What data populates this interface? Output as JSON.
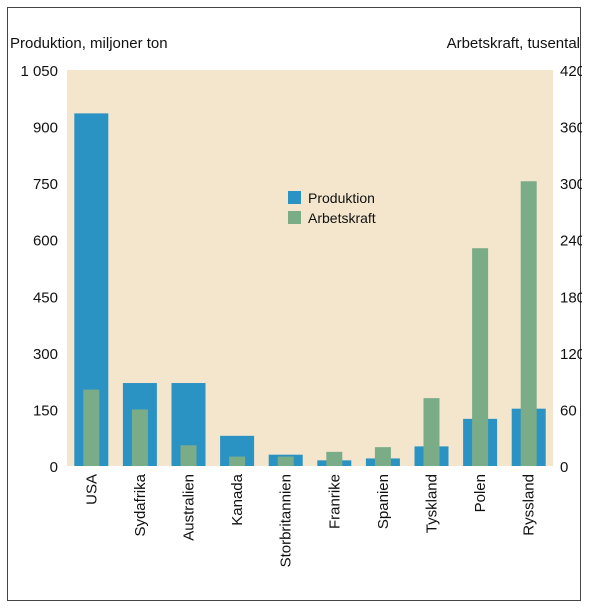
{
  "chart_data": {
    "type": "bar",
    "title": "",
    "ylabel_left": "Produktion, miljoner ton",
    "ylabel_right": "Arbetskraft, tusental",
    "categories": [
      "USA",
      "Sydafrika",
      "Australien",
      "Kanada",
      "Storbritannien",
      "Franrike",
      "Spanien",
      "Tyskland",
      "Polen",
      "Ryssland"
    ],
    "left_axis": {
      "ylim": [
        0,
        1050
      ],
      "ticks": [
        0,
        150,
        300,
        450,
        600,
        750,
        900,
        1050
      ],
      "tick_labels": [
        "0",
        "150",
        "300",
        "450",
        "600",
        "750",
        "900",
        "1 050"
      ]
    },
    "right_axis": {
      "ylim": [
        0,
        420
      ],
      "ticks": [
        0,
        60,
        120,
        180,
        240,
        300,
        360,
        420
      ],
      "tick_labels": [
        "0",
        "60",
        "120",
        "180",
        "240",
        "300",
        "360",
        "420"
      ]
    },
    "series": [
      {
        "name": "Produktion",
        "axis": "left",
        "color": "#2b93c4",
        "values": [
          935,
          220,
          220,
          80,
          30,
          15,
          20,
          52,
          125,
          152
        ]
      },
      {
        "name": "Arbetskraft",
        "axis": "right",
        "color": "#7aac88",
        "values": [
          81,
          60,
          22,
          10,
          10,
          15,
          20,
          72,
          231,
          302
        ]
      }
    ],
    "legend_position": "center-top",
    "grid": false,
    "background_color": "#f3e6cc"
  }
}
